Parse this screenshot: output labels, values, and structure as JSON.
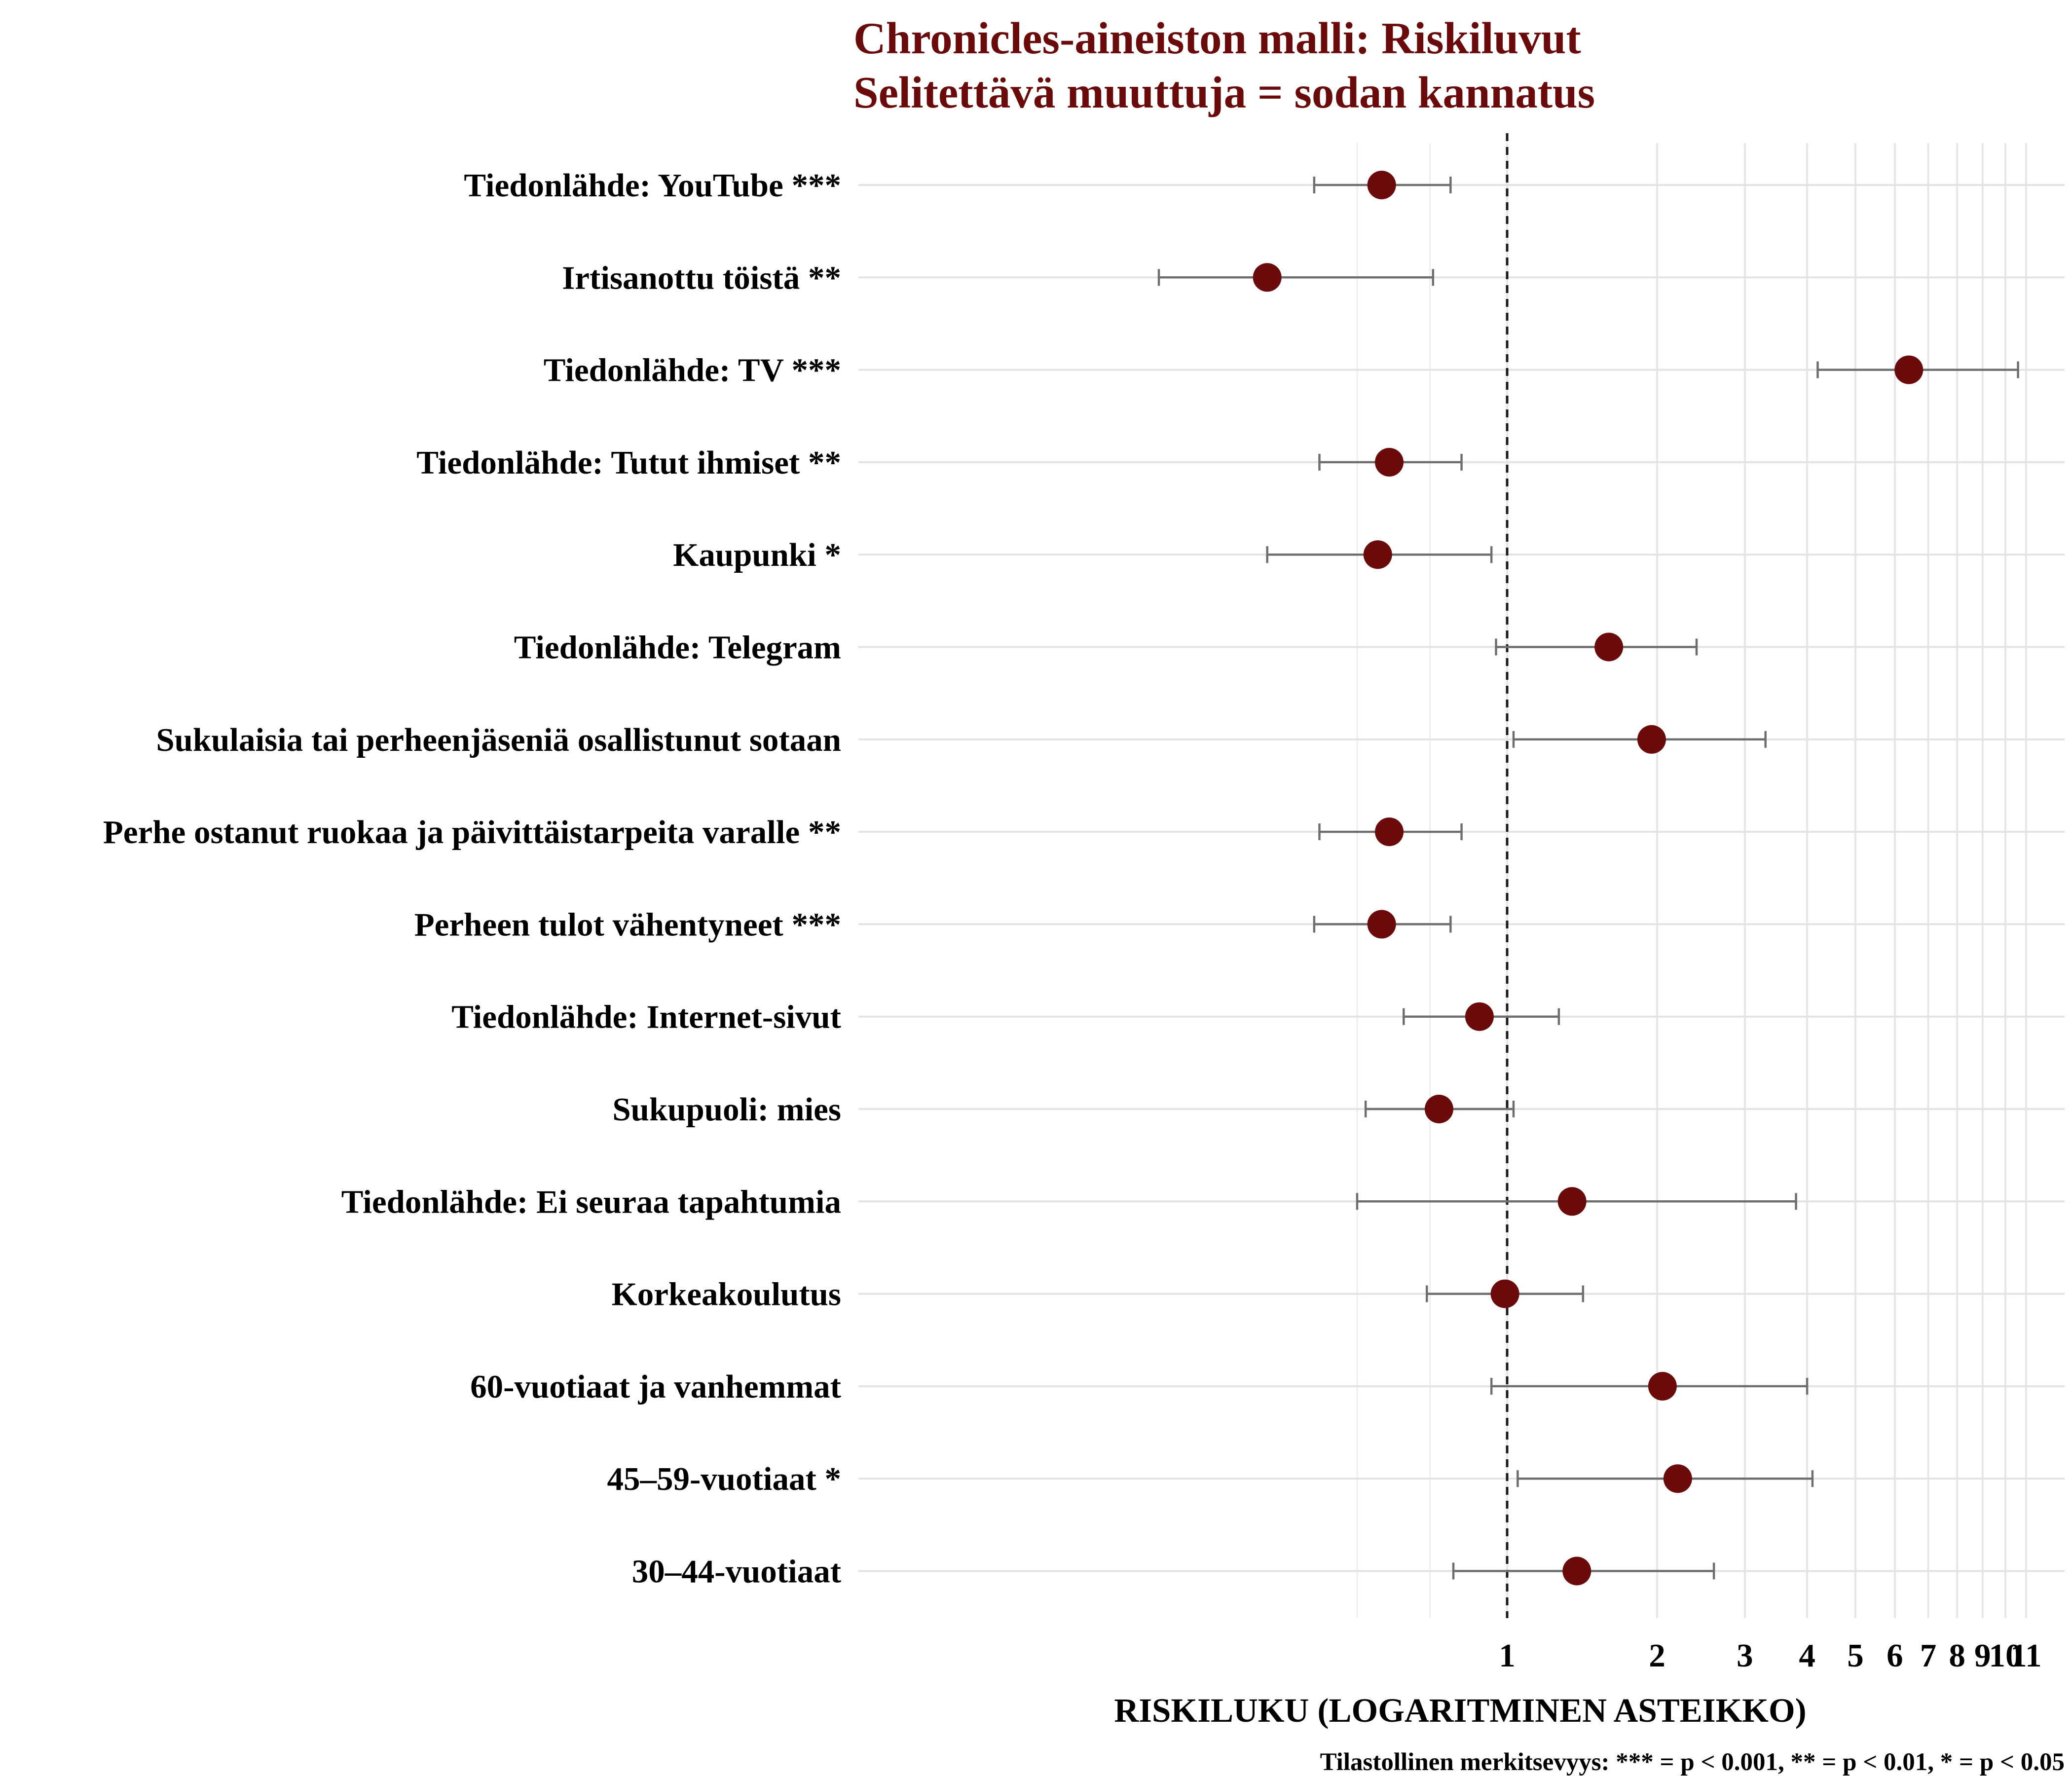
{
  "chart_data": {
    "type": "forest",
    "title": "Chronicles-aineiston malli: Riskiluvut",
    "subtitle": "Selitettävä muuttuja = sodan kannatus",
    "xlabel": "RISKILUKU (LOGARITMINEN ASTEIKKO)",
    "caption": "Tilastollinen merkitsevyys: *** = p < 0.001, ** = p < 0.01, * = p < 0.05",
    "x_scale": "log",
    "xlim": [
      0.2,
      12
    ],
    "x_ticks": [
      1,
      2,
      3,
      4,
      5,
      6,
      7,
      8,
      9,
      10,
      11
    ],
    "x_tick_labels": [
      "1",
      "2",
      "3",
      "4",
      "5",
      "6",
      "7",
      "8",
      "9",
      "10",
      "11"
    ],
    "reference_line": 1,
    "grid": true,
    "point_color": "#6b0a0a",
    "items": [
      {
        "label": "Tiedonlähde: YouTube ***",
        "estimate": 0.56,
        "lower": 0.41,
        "upper": 0.77
      },
      {
        "label": "Irtisanottu töistä **",
        "estimate": 0.33,
        "lower": 0.2,
        "upper": 0.71
      },
      {
        "label": "Tiedonlähde: TV ***",
        "estimate": 6.4,
        "lower": 4.2,
        "upper": 10.6
      },
      {
        "label": "Tiedonlähde: Tutut ihmiset **",
        "estimate": 0.58,
        "lower": 0.42,
        "upper": 0.81
      },
      {
        "label": "Kaupunki *",
        "estimate": 0.55,
        "lower": 0.33,
        "upper": 0.93
      },
      {
        "label": "Tiedonlähde: Telegram",
        "estimate": 1.6,
        "lower": 0.95,
        "upper": 2.4
      },
      {
        "label": "Sukulaisia tai perheenjäseniä osallistunut sotaan",
        "estimate": 1.95,
        "lower": 1.03,
        "upper": 3.3
      },
      {
        "label": "Perhe ostanut ruokaa ja päivittäistarpeita varalle **",
        "estimate": 0.58,
        "lower": 0.42,
        "upper": 0.81
      },
      {
        "label": "Perheen tulot vähentyneet ***",
        "estimate": 0.56,
        "lower": 0.41,
        "upper": 0.77
      },
      {
        "label": "Tiedonlähde: Internet-sivut",
        "estimate": 0.88,
        "lower": 0.62,
        "upper": 1.27
      },
      {
        "label": "Sukupuoli: mies",
        "estimate": 0.73,
        "lower": 0.52,
        "upper": 1.03
      },
      {
        "label": "Tiedonlähde: Ei seuraa tapahtumia",
        "estimate": 1.35,
        "lower": 0.5,
        "upper": 3.8
      },
      {
        "label": "Korkeakoulutus",
        "estimate": 0.99,
        "lower": 0.69,
        "upper": 1.42
      },
      {
        "label": "60-vuotiaat ja vanhemmat",
        "estimate": 2.05,
        "lower": 0.93,
        "upper": 4.0
      },
      {
        "label": "45–59-vuotiaat *",
        "estimate": 2.2,
        "lower": 1.05,
        "upper": 4.1
      },
      {
        "label": "30–44-vuotiaat",
        "estimate": 1.38,
        "lower": 0.78,
        "upper": 2.6
      }
    ]
  }
}
